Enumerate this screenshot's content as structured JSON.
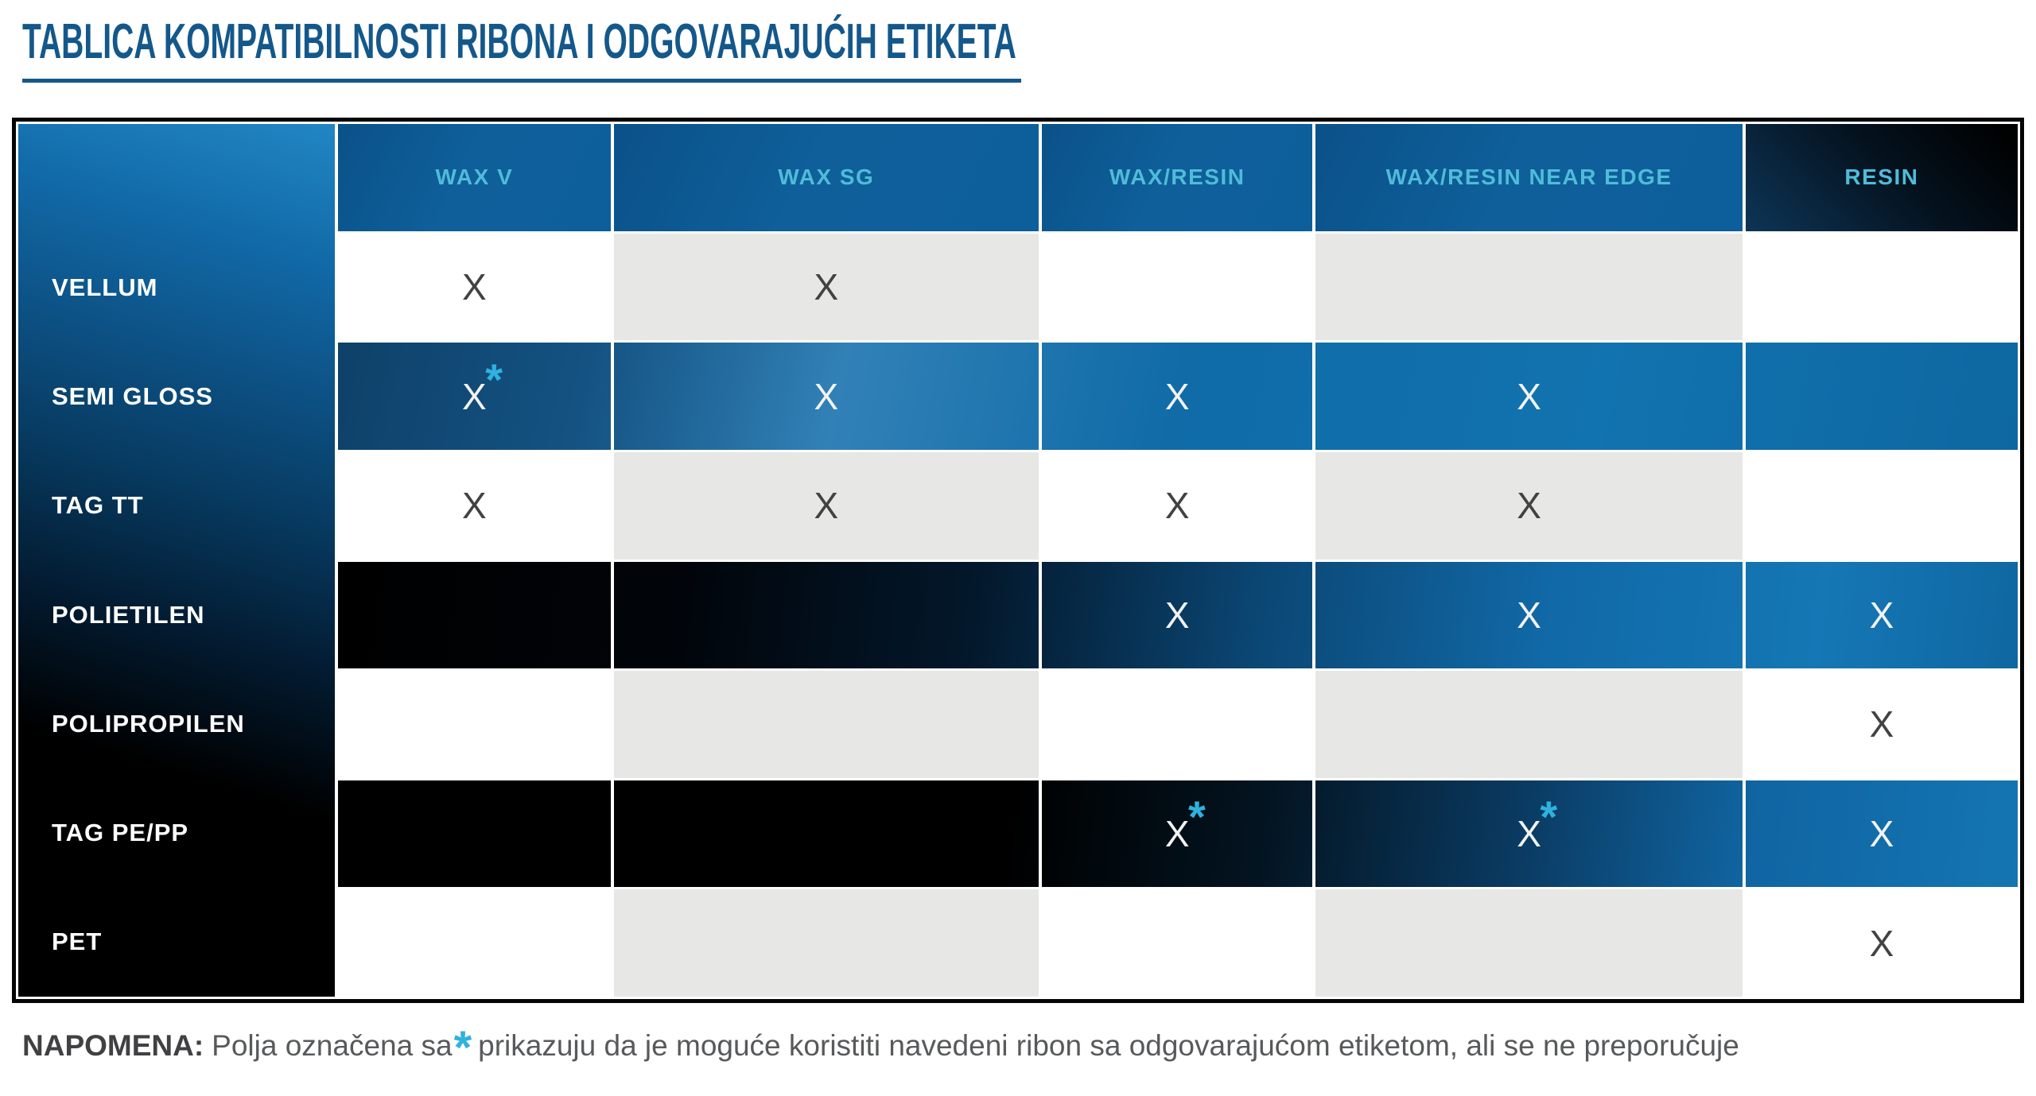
{
  "title": "TABLICA KOMPATIBILNOSTI RIBONA I ODGOVARAJUĆIH ETIKETA",
  "chart_data": {
    "type": "table",
    "title": "TABLICA KOMPATIBILNOSTI RIBONA I ODGOVARAJUĆIH ETIKETA",
    "columns": [
      "WAX V",
      "WAX SG",
      "WAX/RESIN",
      "WAX/RESIN NEAR EDGE",
      "RESIN"
    ],
    "mark": "X",
    "asterisk": "*",
    "rows": [
      {
        "label": "VELLUM",
        "style": "light",
        "values": [
          "X",
          "X",
          "",
          "",
          ""
        ]
      },
      {
        "label": "SEMI GLOSS",
        "style": "blue",
        "values": [
          "X*",
          "X",
          "X",
          "X",
          ""
        ]
      },
      {
        "label": "TAG TT",
        "style": "light",
        "values": [
          "X",
          "X",
          "X",
          "X",
          ""
        ]
      },
      {
        "label": "POLIETILEN",
        "style": "dark",
        "values": [
          "",
          "",
          "X",
          "X",
          "X"
        ]
      },
      {
        "label": "POLIPROPILEN",
        "style": "light",
        "values": [
          "",
          "",
          "",
          "",
          "X"
        ]
      },
      {
        "label": "TAG PE/PP",
        "style": "dark2",
        "values": [
          "",
          "",
          "X*",
          "X*",
          "X"
        ]
      },
      {
        "label": "PET",
        "style": "light",
        "values": [
          "",
          "",
          "",
          "",
          "X"
        ]
      }
    ]
  },
  "note": {
    "label": "NAPOMENA:",
    "before": "Polja označena sa",
    "asterisk": "*",
    "after": "prikazuju da je moguće koristiti navedeni ribon sa odgovarajućom etiketom, ali se ne preporučuje"
  },
  "colors": {
    "title_blue": "#14588b",
    "header_blue": "#0e5f9a",
    "header_text_cyan": "#4fbcd9",
    "accent_cyan": "#2fb2de",
    "cell_gray": "#e7e7e6",
    "mark_dark": "#424242",
    "mark_white": "#ffffff",
    "note_gray": "#58595b"
  }
}
